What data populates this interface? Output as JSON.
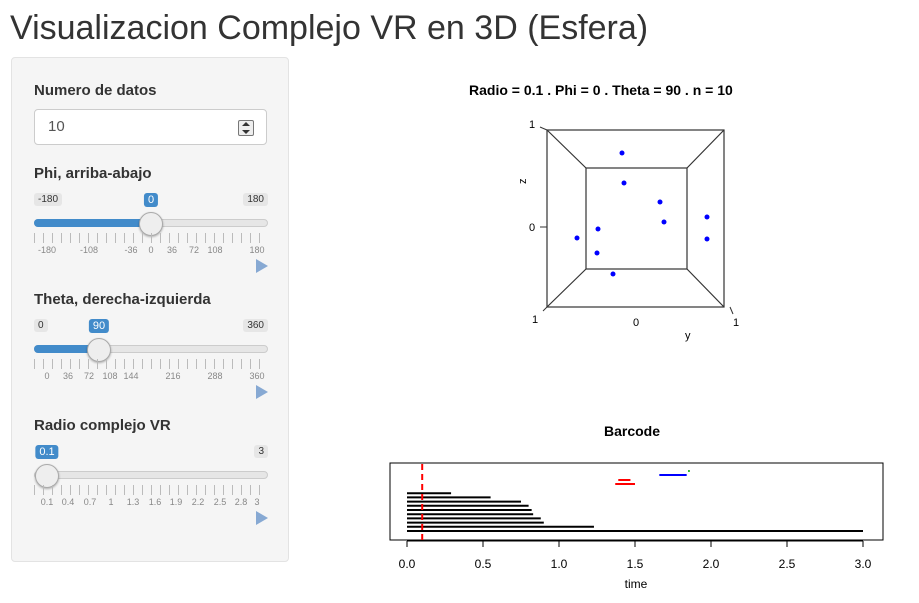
{
  "page_title": "Visualizacion Complejo VR en 3D (Esfera)",
  "sidebar": {
    "numero": {
      "label": "Numero de datos",
      "value": "10"
    },
    "phi": {
      "label": "Phi, arriba-abajo",
      "min": "-180",
      "max": "180",
      "value": "0",
      "value_fraction": 0.5,
      "ticks": [
        "-180",
        "-108",
        "-36",
        "0",
        "36",
        "72",
        "108",
        "180"
      ]
    },
    "theta": {
      "label": "Theta, derecha-izquierda",
      "min": "0",
      "max": "360",
      "value": "90",
      "value_fraction": 0.25,
      "ticks": [
        "0",
        "36",
        "72",
        "108",
        "144",
        "216",
        "288",
        "360"
      ]
    },
    "radio": {
      "label": "Radio complejo VR",
      "min": "0.1",
      "max": "3",
      "value": "0.1",
      "value_fraction": 0,
      "ticks": [
        "0.1",
        "0.4",
        "0.7",
        "1",
        "1.3",
        "1.6",
        "1.9",
        "2.2",
        "2.5",
        "2.8",
        "3"
      ]
    }
  },
  "plot3d": {
    "title": "Radio =  0.1 . Phi =  0 . Theta =  90 . n =  10",
    "z_label": "z",
    "y_label": "y",
    "tick_labels": {
      "z_top": "1",
      "z_mid": "0",
      "bl": "1",
      "y_mid": "0",
      "br": "1"
    },
    "point_color": "#0000ff"
  },
  "barcode": {
    "title": "Barcode",
    "xlabel": "time",
    "x_ticks": [
      "0.0",
      "0.5",
      "1.0",
      "1.5",
      "2.0",
      "2.5",
      "3.0"
    ]
  },
  "chart_data": {
    "type": "barcode",
    "title": "Barcode",
    "xlabel": "time",
    "xlim": [
      0,
      3
    ],
    "threshold": 0.1,
    "threshold_color": "#ff0000",
    "series": [
      {
        "color": "#000000",
        "values": [
          [
            0,
            0.29
          ],
          [
            0,
            0.55
          ],
          [
            0,
            0.75
          ],
          [
            0,
            0.8
          ],
          [
            0,
            0.82
          ],
          [
            0,
            0.83
          ],
          [
            0,
            0.88
          ],
          [
            0,
            0.9
          ],
          [
            0,
            1.23
          ],
          [
            0,
            3.0
          ]
        ]
      },
      {
        "color": "#ff0000",
        "values": [
          [
            1.39,
            1.47
          ],
          [
            1.37,
            1.5
          ]
        ]
      },
      {
        "color": "#0000ff",
        "values": [
          [
            1.66,
            1.84
          ]
        ]
      },
      {
        "color": "#00aa00",
        "values": [
          [
            1.85,
            1.86
          ]
        ]
      }
    ]
  }
}
